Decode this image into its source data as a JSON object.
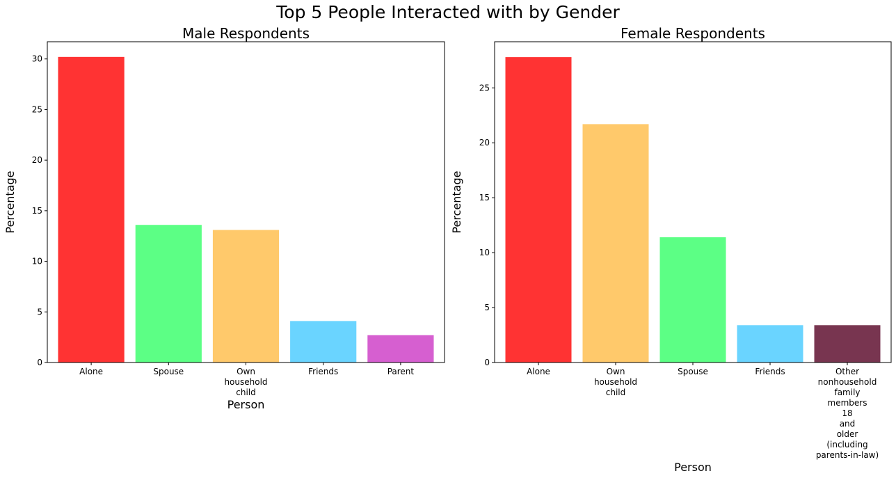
{
  "title": "Top 5 People Interacted with by Gender",
  "chart_data": [
    {
      "type": "bar",
      "title": "Male Respondents",
      "xlabel": "Person",
      "ylabel": "Percentage",
      "ylim": [
        0,
        31.7
      ],
      "yticks": [
        0,
        5,
        10,
        15,
        20,
        25,
        30
      ],
      "categories": [
        "Alone",
        "Spouse",
        "Own household child",
        "Friends",
        "Parent"
      ],
      "category_lines": [
        [
          "Alone"
        ],
        [
          "Spouse"
        ],
        [
          "Own",
          "household",
          "child"
        ],
        [
          "Friends"
        ],
        [
          "Parent"
        ]
      ],
      "values": [
        30.2,
        13.6,
        13.1,
        4.1,
        2.7
      ],
      "colors": [
        "#ff3333",
        "#5cff85",
        "#ffc96b",
        "#6ad4ff",
        "#d65fd0"
      ]
    },
    {
      "type": "bar",
      "title": "Female Respondents",
      "xlabel": "Person",
      "ylabel": "Percentage",
      "ylim": [
        0,
        29.2
      ],
      "yticks": [
        0,
        5,
        10,
        15,
        20,
        25
      ],
      "categories": [
        "Alone",
        "Own household child",
        "Spouse",
        "Friends",
        "Other nonhousehold family members 18 and older (including parents-in-law)"
      ],
      "category_lines": [
        [
          "Alone"
        ],
        [
          "Own",
          "household",
          "child"
        ],
        [
          "Spouse"
        ],
        [
          "Friends"
        ],
        [
          "Other",
          "nonhousehold",
          "family",
          "members",
          "18",
          "and",
          "older",
          "(including",
          "parents-in-law)"
        ]
      ],
      "values": [
        27.8,
        21.7,
        11.4,
        3.4,
        3.4
      ],
      "colors": [
        "#ff3333",
        "#ffc96b",
        "#5cff85",
        "#6ad4ff",
        "#783550"
      ]
    }
  ]
}
